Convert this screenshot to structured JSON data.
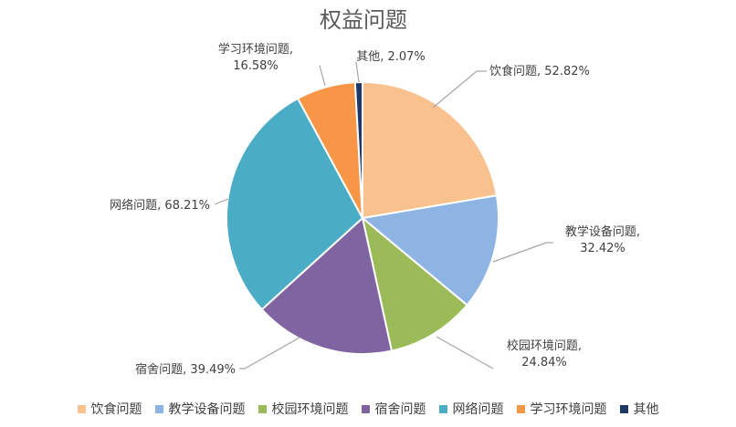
{
  "chart_data": {
    "type": "pie",
    "title": "权益问题",
    "slices": [
      {
        "category": "饮食问题",
        "value": 52.82,
        "label": "饮食问题, 52.82%",
        "color": "#F9C18D"
      },
      {
        "category": "教学设备问题",
        "value": 32.42,
        "label": "教学设备问题,\n32.42%",
        "color": "#8EB4E3"
      },
      {
        "category": "校园环境问题",
        "value": 24.84,
        "label": "校园环境问题,\n24.84%",
        "color": "#9BBB59"
      },
      {
        "category": "宿舍问题",
        "value": 39.49,
        "label": "宿舍问题, 39.49%",
        "color": "#8064A2"
      },
      {
        "category": "网络问题",
        "value": 68.21,
        "label": "网络问题, 68.21%",
        "color": "#4BACC6"
      },
      {
        "category": "学习环境问题",
        "value": 16.58,
        "label": "学习环境问题,\n16.58%",
        "color": "#F79646"
      },
      {
        "category": "其他",
        "value": 2.07,
        "label": "其他, 2.07%",
        "color": "#1F3864"
      }
    ],
    "legend": {
      "position": "bottom",
      "items": [
        "饮食问题",
        "教学设备问题",
        "校园环境问题",
        "宿舍问题",
        "网络问题",
        "学习环境问题",
        "其他"
      ]
    }
  }
}
